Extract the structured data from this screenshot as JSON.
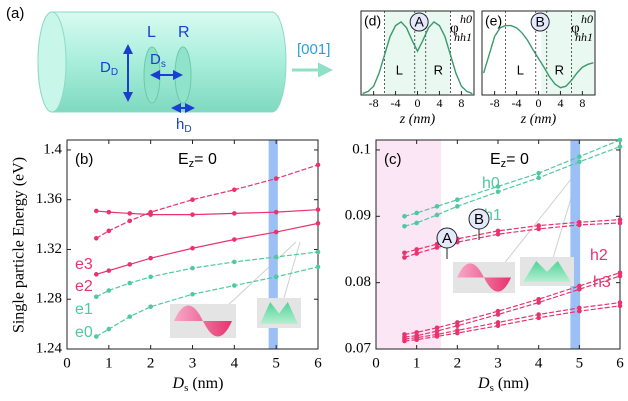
{
  "diagram": {
    "panel_label": "(a)",
    "left": "L",
    "right": "R",
    "dot_diameter": [
      "D",
      "D"
    ],
    "separation": [
      "D",
      "s"
    ],
    "height": [
      "h",
      "D"
    ],
    "direction": "[001]"
  },
  "chart_data": [
    {
      "type": "line",
      "panel_label": "(b)",
      "ylabel": "Single particle Energy (eV)",
      "xlabel": [
        "D",
        "s",
        " (nm)"
      ],
      "field": [
        "E",
        "z",
        "= 0"
      ],
      "xlim": [
        0,
        6
      ],
      "xticks": [
        0,
        1,
        2,
        3,
        4,
        5,
        6
      ],
      "ylim": [
        1.24,
        1.408
      ],
      "yticks": [
        1.24,
        1.28,
        1.32,
        1.36,
        1.4
      ],
      "regions": [
        {
          "x": [
            4.82,
            5.04
          ],
          "color": "#9cc0f5"
        }
      ],
      "markers": true,
      "x": [
        0.7,
        1,
        1.5,
        2,
        3,
        4,
        5,
        6
      ],
      "series": [
        {
          "color": "#e8336e",
          "dashed": false,
          "values": [
            1.351,
            1.35,
            1.349,
            1.348,
            1.348,
            1.349,
            1.35,
            1.352
          ]
        },
        {
          "name": "e3",
          "color": "#e8336e",
          "dashed": true,
          "values": [
            1.329,
            1.335,
            1.343,
            1.35,
            1.36,
            1.368,
            1.377,
            1.388
          ]
        },
        {
          "name": "e2",
          "color": "#e8336e",
          "dashed": false,
          "values": [
            1.3,
            1.303,
            1.308,
            1.313,
            1.321,
            1.328,
            1.334,
            1.341
          ]
        },
        {
          "name": "e1",
          "color": "#4fc9a0",
          "dashed": true,
          "values": [
            1.282,
            1.287,
            1.293,
            1.298,
            1.305,
            1.31,
            1.314,
            1.318
          ]
        },
        {
          "name": "e0",
          "color": "#4fc9a0",
          "dashed": true,
          "values": [
            1.25,
            1.256,
            1.266,
            1.274,
            1.284,
            1.291,
            1.298,
            1.306
          ]
        }
      ]
    },
    {
      "type": "line",
      "panel_label": "(c)",
      "xlabel": [
        "D",
        "s",
        " (nm)"
      ],
      "field": [
        "E",
        "z",
        "= 0"
      ],
      "states": [
        "A",
        "B"
      ],
      "xlim": [
        0,
        6
      ],
      "xticks": [
        0,
        1,
        2,
        3,
        4,
        5,
        6
      ],
      "ylim": [
        0.07,
        0.1015
      ],
      "yticks": [
        0.07,
        0.08,
        0.09,
        0.1
      ],
      "regions": [
        {
          "x": [
            0,
            1.6
          ],
          "color": "#fbe6f6"
        },
        {
          "x": [
            4.78,
            5.02
          ],
          "color": "#9cc0f5"
        }
      ],
      "markers": true,
      "x": [
        0.7,
        1,
        1.5,
        2,
        3,
        4,
        5,
        6
      ],
      "series": [
        {
          "name": "h0",
          "color": "#4fc9a0",
          "dashed": true,
          "values": [
            0.09,
            0.0905,
            0.0915,
            0.0925,
            0.0945,
            0.0965,
            0.099,
            0.1015
          ]
        },
        {
          "name": "h1",
          "color": "#4fc9a0",
          "dashed": true,
          "values": [
            0.0885,
            0.089,
            0.0902,
            0.0915,
            0.0937,
            0.0958,
            0.0982,
            0.1005
          ]
        },
        {
          "name": "h2",
          "color": "#e8336e",
          "dashed": true,
          "values": [
            0.0845,
            0.085,
            0.0858,
            0.0866,
            0.0878,
            0.0886,
            0.0891,
            0.0895
          ]
        },
        {
          "name": "h3",
          "color": "#e8336e",
          "dashed": true,
          "values": [
            0.0838,
            0.0844,
            0.0853,
            0.0861,
            0.0873,
            0.0881,
            0.0887,
            0.089
          ]
        },
        {
          "color": "#e8336e",
          "dashed": true,
          "values": [
            0.0722,
            0.0725,
            0.0732,
            0.074,
            0.0757,
            0.0775,
            0.0795,
            0.0815
          ]
        },
        {
          "color": "#e8336e",
          "dashed": true,
          "values": [
            0.0718,
            0.072,
            0.0727,
            0.0735,
            0.0752,
            0.077,
            0.079,
            0.081
          ]
        },
        {
          "color": "#e8336e",
          "dashed": true,
          "values": [
            0.0715,
            0.0717,
            0.0722,
            0.0728,
            0.074,
            0.0752,
            0.0762,
            0.077
          ]
        },
        {
          "color": "#e8336e",
          "dashed": true,
          "values": [
            0.0712,
            0.0714,
            0.0719,
            0.0724,
            0.0735,
            0.0747,
            0.0757,
            0.0765
          ]
        }
      ]
    },
    {
      "type": "line",
      "panel_label": "(d)",
      "xlabel": "z (nm)",
      "state": "A",
      "regions_text": [
        "L",
        "R"
      ],
      "wavefunction": [
        "φ",
        "h0",
        "hh1"
      ],
      "xlim": [
        -10.3,
        10.3
      ],
      "xticks": [
        -8,
        -4,
        0,
        4,
        8
      ],
      "ylim": [
        0,
        1.15
      ],
      "guides": [
        -6,
        -0.5,
        1.5,
        6
      ],
      "regions": [
        {
          "x": [
            -6,
            6
          ],
          "color": "#e9f8f1"
        }
      ],
      "markers": false,
      "x": [
        -10,
        -9,
        -8,
        -7,
        -6,
        -5,
        -4,
        -3,
        -2,
        -1,
        0,
        1,
        2,
        3,
        4,
        5,
        6,
        7,
        8,
        9,
        10
      ],
      "series": [
        {
          "color": "#3a9a6a",
          "dashed": false,
          "values": [
            0.02,
            0.05,
            0.12,
            0.3,
            0.55,
            0.8,
            0.95,
            1.0,
            0.92,
            0.75,
            0.6,
            0.75,
            0.92,
            1.0,
            0.95,
            0.8,
            0.55,
            0.3,
            0.12,
            0.05,
            0.02
          ]
        }
      ]
    },
    {
      "type": "line",
      "panel_label": "(e)",
      "xlabel": "z (nm)",
      "state": "B",
      "regions_text": [
        "L",
        "R"
      ],
      "wavefunction": [
        "φ",
        "h0",
        "hh1"
      ],
      "xlim": [
        -10.3,
        10.3
      ],
      "xticks": [
        -8,
        -4,
        0,
        4,
        8
      ],
      "ylim": [
        0,
        1.15
      ],
      "guides": [
        -6,
        -0.5,
        1.5,
        6
      ],
      "regions": [
        {
          "x": [
            0.5,
            10.3
          ],
          "color": "#e9f8f1"
        }
      ],
      "markers": false,
      "x": [
        -10,
        -9,
        -8,
        -7,
        -6,
        -5,
        -4,
        -3,
        -2,
        -1,
        0,
        1,
        2,
        3,
        4,
        5,
        6,
        7,
        8,
        9,
        10
      ],
      "series": [
        {
          "color": "#3a9a6a",
          "dashed": false,
          "values": [
            0.3,
            0.55,
            0.8,
            0.92,
            0.95,
            0.95,
            0.92,
            0.85,
            0.75,
            0.62,
            0.5,
            0.38,
            0.25,
            0.15,
            0.1,
            0.12,
            0.2,
            0.3,
            0.38,
            0.42,
            0.44
          ]
        }
      ]
    }
  ]
}
